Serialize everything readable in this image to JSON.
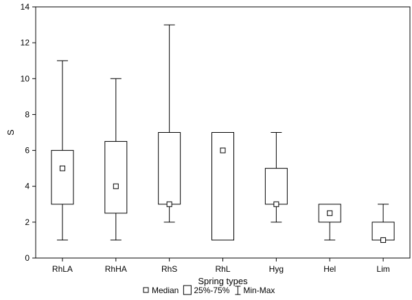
{
  "chart_data": {
    "type": "boxplot",
    "title": "",
    "xlabel": "Spring types",
    "ylabel": "S",
    "ylim": [
      0,
      14
    ],
    "yticks": [
      0,
      2,
      4,
      6,
      8,
      10,
      12,
      14
    ],
    "grid": false,
    "categories": [
      "RhLA",
      "RhHA",
      "RhS",
      "RhL",
      "Hyg",
      "Hel",
      "Lim"
    ],
    "boxes": [
      {
        "category": "RhLA",
        "min": 1,
        "q1": 3,
        "median": 5,
        "q3": 6,
        "max": 11
      },
      {
        "category": "RhHA",
        "min": 1,
        "q1": 2.5,
        "median": 4,
        "q3": 6.5,
        "max": 10
      },
      {
        "category": "RhS",
        "min": 2,
        "q1": 3,
        "median": 3,
        "q3": 7,
        "max": 13
      },
      {
        "category": "RhL",
        "min": 1,
        "q1": 1,
        "median": 6,
        "q3": 7,
        "max": 7
      },
      {
        "category": "Hyg",
        "min": 2,
        "q1": 3,
        "median": 3,
        "q3": 5,
        "max": 7
      },
      {
        "category": "Hel",
        "min": 1,
        "q1": 2,
        "median": 2.5,
        "q3": 3,
        "max": 3
      },
      {
        "category": "Lim",
        "min": 1,
        "q1": 1,
        "median": 1,
        "q3": 2,
        "max": 3
      }
    ],
    "legend": {
      "position": "bottom",
      "entries": [
        {
          "symbol": "median-square",
          "label": "Median"
        },
        {
          "symbol": "box",
          "label": "25%-75%"
        },
        {
          "symbol": "whisker",
          "label": "Min-Max"
        }
      ]
    },
    "colors": {
      "stroke": "#000000",
      "fill": "#ffffff"
    }
  }
}
